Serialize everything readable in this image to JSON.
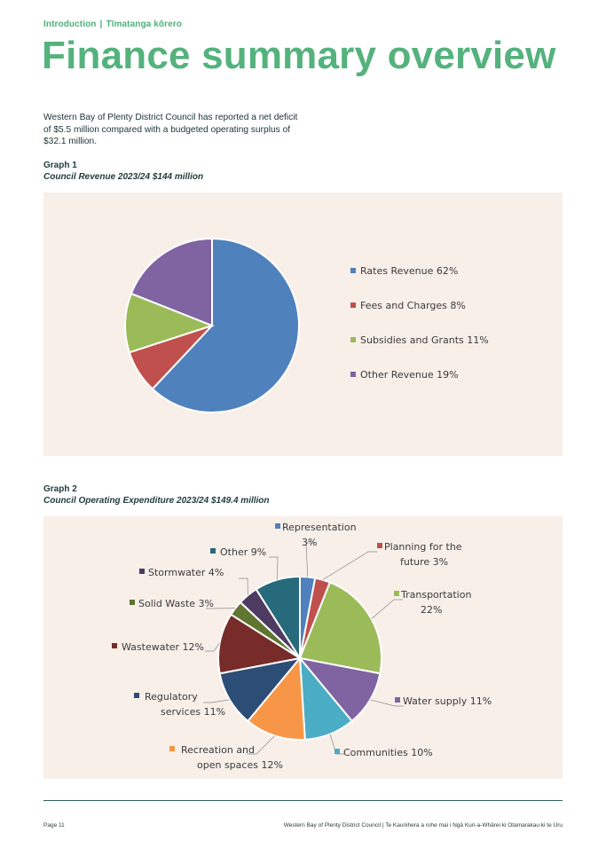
{
  "breadcrumb": {
    "section": "Introduction",
    "separator": "|",
    "translation": "Tīmatanga kōrero"
  },
  "title": "Finance summary overview",
  "intro_text": "Western Bay of Plenty District Council has reported a net deficit of $5.5 million compared with a budgeted operating surplus of $32.1 million.",
  "graph1": {
    "label": "Graph 1",
    "subtitle": "Council Revenue 2023/24 $144 million"
  },
  "graph2": {
    "label": "Graph 2",
    "subtitle": "Council Operating Expenditure 2023/24 $149.4 million"
  },
  "footer": {
    "page": "Page 11",
    "org": "Western Bay of Plenty District Council | Te Kaunihera a rohe mai i Ngā Kuri-a-Whārei ki Otamarakau ki te Uru"
  },
  "chart_data": [
    {
      "type": "pie",
      "title": "Council Revenue 2023/24 $144 million",
      "legend_position": "right",
      "slices": [
        {
          "label": "Rates Revenue 62%",
          "value": 62,
          "color": "#4f81bd"
        },
        {
          "label": "Fees and Charges 8%",
          "value": 8,
          "color": "#c0504d"
        },
        {
          "label": "Subsidies and Grants 11%",
          "value": 11,
          "color": "#9bbb59"
        },
        {
          "label": "Other Revenue 19%",
          "value": 19,
          "color": "#8064a2"
        }
      ]
    },
    {
      "type": "pie",
      "title": "Council Operating Expenditure 2023/24 $149.4 million",
      "legend_position": "outside labels",
      "slices": [
        {
          "label": [
            "Representation",
            "3%"
          ],
          "value": 3,
          "color": "#4f81bd"
        },
        {
          "label": [
            "Planning for the",
            "future 3%"
          ],
          "value": 3,
          "color": "#c0504d"
        },
        {
          "label": [
            "Transportation",
            "22%"
          ],
          "value": 22,
          "color": "#9bbb59"
        },
        {
          "label": [
            "Water supply 11%"
          ],
          "value": 11,
          "color": "#8064a2"
        },
        {
          "label": [
            "Communities 10%"
          ],
          "value": 10,
          "color": "#4bacc6"
        },
        {
          "label": [
            "Recreation and",
            "open spaces 12%"
          ],
          "value": 12,
          "color": "#f79646"
        },
        {
          "label": [
            "Regulatory",
            "services 11%"
          ],
          "value": 11,
          "color": "#2c4d75"
        },
        {
          "label": [
            "Wastewater 12%"
          ],
          "value": 12,
          "color": "#772c2a"
        },
        {
          "label": [
            "Solid Waste 3%"
          ],
          "value": 3,
          "color": "#5f7530"
        },
        {
          "label": [
            "Stormwater 4%"
          ],
          "value": 4,
          "color": "#4d3b62"
        },
        {
          "label": [
            "Other 9%"
          ],
          "value": 9,
          "color": "#276a7c"
        }
      ]
    }
  ]
}
